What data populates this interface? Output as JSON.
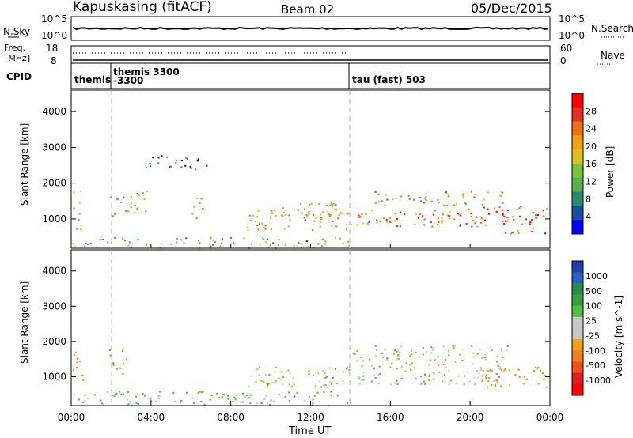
{
  "header": {
    "station": "Kapuskasing (fitACF)",
    "beam": "Beam 02",
    "date": "05/Dec/2015"
  },
  "noise_panel": {
    "left_label": "N.Sky",
    "right_label": "N.Search",
    "left_ticks": [
      "10^5",
      "10^0"
    ],
    "right_ticks": [
      "10^5",
      "10^0"
    ]
  },
  "freq_panel": {
    "left_label_1": "Freq.",
    "left_label_2": "[MHz]",
    "right_label": "Nave",
    "left_ticks": [
      "18",
      "8"
    ],
    "right_ticks": [
      "60",
      "0"
    ]
  },
  "cpid_panel": {
    "label": "CPID",
    "entries": [
      {
        "text": "themis",
        "time_h": 0.0
      },
      {
        "text": "themis 3300",
        "time_h": 1.85
      },
      {
        "text": "-3300",
        "time_h": 1.85
      },
      {
        "text": "tau (fast) 503",
        "time_h": 14.0
      }
    ]
  },
  "power_panel": {
    "ylabel": "Slant Range [km]",
    "yticks": [
      1000,
      2000,
      3000,
      4000
    ],
    "ylim": [
      180,
      4600
    ],
    "colorbar_label": "Power [dB]",
    "colorbar_ticks": [
      "28",
      "24",
      "20",
      "16",
      "12",
      "8",
      "4"
    ],
    "colors": [
      "#0000ff",
      "#1a4fa0",
      "#2a8a70",
      "#58b050",
      "#7cc23c",
      "#e0c020",
      "#f2a010",
      "#f07018",
      "#e83020",
      "#ff0000"
    ]
  },
  "velocity_panel": {
    "ylabel": "Slant Range [km]",
    "yticks": [
      1000,
      2000,
      3000,
      4000
    ],
    "ylim": [
      180,
      4600
    ],
    "colorbar_label": "Velocity [m s^-1]",
    "colorbar_ticks": [
      "1000",
      "500",
      "100",
      "25",
      "-25",
      "-100",
      "-500",
      "-1000"
    ],
    "colors": [
      "#2040b0",
      "#2a60c0",
      "#2a8a50",
      "#3aa040",
      "#50c040",
      "#c8c8c0",
      "#c8c8c0",
      "#f0a020",
      "#f08020",
      "#f05020",
      "#e02020",
      "#ff0000"
    ]
  },
  "xaxis": {
    "label": "Time UT",
    "ticks": [
      "00:00",
      "04:00",
      "08:00",
      "12:00",
      "16:00",
      "20:00",
      "00:00"
    ],
    "range_h": [
      0,
      24
    ]
  },
  "chart_data": {
    "type": "heatmap",
    "title": "Kapuskasing (fitACF)",
    "subtitle": "Beam 02",
    "date": "05/Dec/2015",
    "xlabel": "Time UT",
    "ylabel": "Slant Range [km]",
    "xlim_hours": [
      0,
      24
    ],
    "ylim_km": [
      180,
      4600
    ],
    "mode_change_times_h": [
      1.85,
      14.0
    ],
    "power_regions_db": [
      {
        "t": [
          0.0,
          0.5
        ],
        "r": [
          700,
          1800
        ],
        "power": 16
      },
      {
        "t": [
          1.9,
          3.8
        ],
        "r": [
          1100,
          1800
        ],
        "power": 14
      },
      {
        "t": [
          6.0,
          6.6
        ],
        "r": [
          1000,
          1600
        ],
        "power": 14
      },
      {
        "t": [
          8.8,
          14.0
        ],
        "r": [
          700,
          1300
        ],
        "power": 20
      },
      {
        "t": [
          10.5,
          13.5
        ],
        "r": [
          1100,
          1500
        ],
        "power": 18
      },
      {
        "t": [
          14.0,
          22.0
        ],
        "r": [
          800,
          1350
        ],
        "power": 24
      },
      {
        "t": [
          15.0,
          21.8
        ],
        "r": [
          1400,
          1800
        ],
        "power": 14
      },
      {
        "t": [
          21.5,
          23.9
        ],
        "r": [
          600,
          1400
        ],
        "power": 26
      },
      {
        "t": [
          3.6,
          6.8
        ],
        "r": [
          2400,
          2800
        ],
        "power": 4
      },
      {
        "t": [
          0.0,
          14.0
        ],
        "r": [
          200,
          500
        ],
        "power": 12
      }
    ],
    "velocity_regions_ms": [
      {
        "t": [
          0.0,
          0.6
        ],
        "r": [
          900,
          1800
        ],
        "velocity": -300
      },
      {
        "t": [
          1.9,
          2.8
        ],
        "r": [
          1100,
          1800
        ],
        "velocity": -300
      },
      {
        "t": [
          8.8,
          14.0
        ],
        "r": [
          700,
          1300
        ],
        "velocity": 0
      },
      {
        "t": [
          14.0,
          22.0
        ],
        "r": [
          800,
          1900
        ],
        "velocity": 0
      },
      {
        "t": [
          20.5,
          23.9
        ],
        "r": [
          700,
          1300
        ],
        "velocity": -200
      },
      {
        "t": [
          0.0,
          14.0
        ],
        "r": [
          200,
          600
        ],
        "velocity": 150
      }
    ]
  }
}
